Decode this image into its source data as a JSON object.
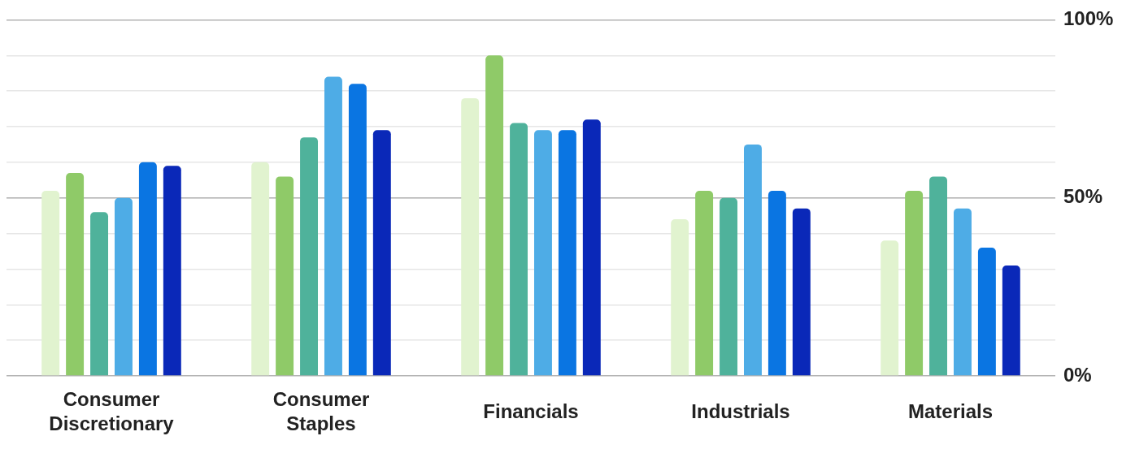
{
  "chart_data": {
    "type": "bar",
    "categories": [
      "Consumer Discretionary",
      "Consumer Staples",
      "Financials",
      "Industrials",
      "Materials"
    ],
    "series": [
      {
        "color": "#e1f3cf",
        "values": [
          52,
          60,
          78,
          44,
          38
        ]
      },
      {
        "color": "#8fca68",
        "values": [
          57,
          56,
          90,
          52,
          52
        ]
      },
      {
        "color": "#4fb29b",
        "values": [
          46,
          67,
          71,
          50,
          56
        ]
      },
      {
        "color": "#4eace6",
        "values": [
          50,
          84,
          69,
          65,
          47
        ]
      },
      {
        "color": "#0a75e2",
        "values": [
          60,
          82,
          69,
          52,
          36
        ]
      },
      {
        "color": "#0a28b8",
        "values": [
          59,
          69,
          72,
          47,
          31
        ]
      }
    ],
    "ylim": [
      0,
      100
    ],
    "yticks": [
      {
        "value": 0,
        "label": "0%"
      },
      {
        "value": 10,
        "label": null
      },
      {
        "value": 20,
        "label": null
      },
      {
        "value": 30,
        "label": null
      },
      {
        "value": 40,
        "label": null
      },
      {
        "value": 50,
        "label": "50%"
      },
      {
        "value": 60,
        "label": null
      },
      {
        "value": 70,
        "label": null
      },
      {
        "value": 80,
        "label": null
      },
      {
        "value": 90,
        "label": null
      },
      {
        "value": 100,
        "label": "100%"
      }
    ],
    "ref_lines": [
      {
        "axis": "y",
        "value": 50,
        "color": "#b3b3b3"
      }
    ],
    "grid": "y"
  }
}
